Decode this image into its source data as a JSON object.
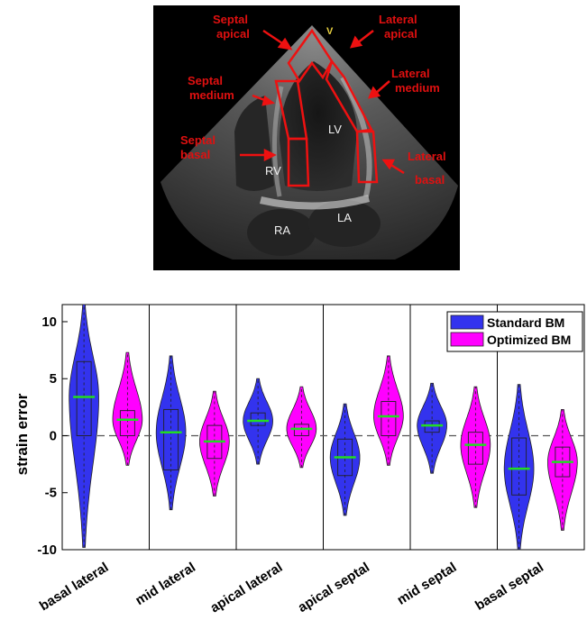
{
  "image_panel": {
    "labels": {
      "septal_apical": [
        "Septal",
        "apical"
      ],
      "lateral_apical": [
        "Lateral",
        "apical"
      ],
      "septal_medium": [
        "Septal",
        "medium"
      ],
      "lateral_medium": [
        "Lateral",
        "medium"
      ],
      "septal_basal": [
        "Septal",
        "basal"
      ],
      "lateral_basal": [
        "Lateral",
        "basal"
      ]
    },
    "chambers": {
      "lv": "LV",
      "rv": "RV",
      "ra": "RA",
      "la": "LA"
    },
    "apex_marker": "V"
  },
  "chart_data": {
    "type": "violin",
    "title": "",
    "xlabel": "",
    "ylabel": "strain error",
    "ylim": [
      -10,
      11.5
    ],
    "yticks": [
      -10,
      -5,
      0,
      5,
      10
    ],
    "reference_line": 0,
    "legend_position": "top-right",
    "categories": [
      "basal lateral",
      "mid lateral",
      "apical  lateral",
      "apical septal",
      "mid septal",
      "basal septal"
    ],
    "series": [
      {
        "name": "Standard BM",
        "color": "#3333ee",
        "groups": [
          {
            "min": -9.8,
            "max": 11.5,
            "q1": 0,
            "median": 3.4,
            "q3": 6.5,
            "mean": 3.4
          },
          {
            "min": -6.5,
            "max": 7,
            "q1": -3,
            "median": 0.3,
            "q3": 2.3,
            "mean": 0.3
          },
          {
            "min": -2.5,
            "max": 5,
            "q1": 0.9,
            "median": 1.3,
            "q3": 2,
            "mean": 1.3
          },
          {
            "min": -7,
            "max": 2.8,
            "q1": -3.5,
            "median": -1.9,
            "q3": -0.3,
            "mean": -1.9
          },
          {
            "min": -3.3,
            "max": 4.6,
            "q1": 0.3,
            "median": 0.9,
            "q3": 1.3,
            "mean": 0.9
          },
          {
            "min": -10,
            "max": 4.5,
            "q1": -5.2,
            "median": -2.9,
            "q3": -0.2,
            "mean": -2.9
          }
        ]
      },
      {
        "name": "Optimized BM",
        "color": "#ff00ff",
        "groups": [
          {
            "min": -2.6,
            "max": 7.3,
            "q1": 0,
            "median": 1.4,
            "q3": 2.2,
            "mean": 1.4
          },
          {
            "min": -5.3,
            "max": 3.9,
            "q1": -2,
            "median": -0.5,
            "q3": 0.9,
            "mean": -0.5
          },
          {
            "min": -2.8,
            "max": 4.3,
            "q1": 0,
            "median": 0.6,
            "q3": 1,
            "mean": 0.6
          },
          {
            "min": -2.6,
            "max": 7,
            "q1": 0,
            "median": 1.7,
            "q3": 3,
            "mean": 1.7
          },
          {
            "min": -6.3,
            "max": 4.3,
            "q1": -2.5,
            "median": -0.8,
            "q3": 0.3,
            "mean": -0.8
          },
          {
            "min": -8.3,
            "max": 2.3,
            "q1": -3.6,
            "median": -2.3,
            "q3": -1,
            "mean": -2.3
          }
        ]
      }
    ]
  }
}
